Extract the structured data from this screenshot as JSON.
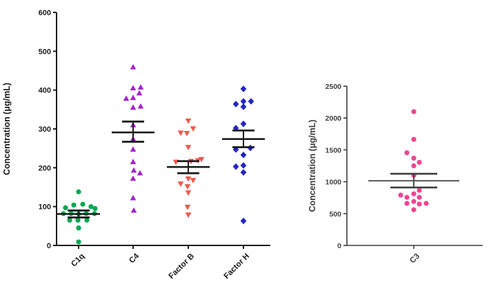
{
  "figure": {
    "background": "#ffffff",
    "panels": [
      "complement-proteins-scatter",
      "c3-scatter"
    ]
  },
  "chart_data": [
    {
      "id": "complement-proteins-scatter",
      "type": "scatter",
      "subtype": "column_scatter_with_mean_and_error",
      "title": "",
      "xlabel": "",
      "ylabel": "Concentration  (μg/mL)",
      "ylim": [
        0,
        600
      ],
      "yticks": [
        0,
        100,
        200,
        300,
        400,
        500,
        600
      ],
      "grid": false,
      "legend": "none",
      "axis_color": "#1a1a1a",
      "categories": [
        "C1q",
        "C4",
        "Factor B",
        "Factor H"
      ],
      "series": [
        {
          "name": "C1q",
          "marker": "circle",
          "color": "#00A84F",
          "mean": 81,
          "err_low": 72,
          "err_high": 90,
          "points": [
            [
              0,
              138
            ],
            [
              -19,
              97
            ],
            [
              -7,
              104
            ],
            [
              6,
              106
            ],
            [
              18,
              100
            ],
            [
              24,
              95
            ],
            [
              -22,
              82
            ],
            [
              -11,
              82
            ],
            [
              0,
              81
            ],
            [
              11,
              82
            ],
            [
              23,
              82
            ],
            [
              -13,
              65
            ],
            [
              -1,
              65
            ],
            [
              12,
              65
            ],
            [
              0,
              45
            ],
            [
              0,
              9
            ]
          ]
        },
        {
          "name": "C4",
          "marker": "triangle-up",
          "color": "#A322CE",
          "mean": 291,
          "err_low": 267,
          "err_high": 319,
          "points": [
            [
              0,
              459
            ],
            [
              0,
              405
            ],
            [
              11,
              407
            ],
            [
              9,
              392
            ],
            [
              -10,
              378
            ],
            [
              0,
              380
            ],
            [
              0,
              355
            ],
            [
              11,
              358
            ],
            [
              0,
              310
            ],
            [
              0,
              274
            ],
            [
              0,
              247
            ],
            [
              0,
              215
            ],
            [
              1,
              193
            ],
            [
              10,
              186
            ],
            [
              0,
              172
            ],
            [
              0,
              122
            ],
            [
              1,
              90
            ]
          ]
        },
        {
          "name": "Factor B",
          "marker": "triangle-down",
          "color": "#F2574B",
          "mean": 202,
          "err_low": 186,
          "err_high": 217,
          "points": [
            [
              0,
              321
            ],
            [
              7,
              301
            ],
            [
              -11,
              290
            ],
            [
              -2,
              289
            ],
            [
              0,
              253
            ],
            [
              -18,
              215
            ],
            [
              4,
              217
            ],
            [
              14,
              219
            ],
            [
              19,
              222
            ],
            [
              0,
              172
            ],
            [
              7,
              168
            ],
            [
              -11,
              159
            ],
            [
              -1,
              152
            ],
            [
              0,
              136
            ],
            [
              -1,
              99
            ],
            [
              0,
              79
            ]
          ]
        },
        {
          "name": "Factor H",
          "marker": "diamond",
          "color": "#2425C4",
          "mean": 274,
          "err_low": 253,
          "err_high": 296,
          "points": [
            [
              0,
              403
            ],
            [
              0,
              371
            ],
            [
              11,
              371
            ],
            [
              -11,
              364
            ],
            [
              0,
              357
            ],
            [
              0,
              313
            ],
            [
              -11,
              302
            ],
            [
              -11,
              247
            ],
            [
              10,
              251
            ],
            [
              0,
              233
            ],
            [
              0,
              206
            ],
            [
              -11,
              203
            ],
            [
              0,
              188
            ],
            [
              0,
              63
            ]
          ]
        }
      ]
    },
    {
      "id": "c3-scatter",
      "type": "scatter",
      "subtype": "column_scatter_with_mean_and_error",
      "title": "",
      "xlabel": "",
      "ylabel": "Concentration  (μg/mL)",
      "ylim": [
        0,
        2500
      ],
      "yticks": [
        0,
        500,
        1000,
        1500,
        2000,
        2500
      ],
      "grid": false,
      "legend": "none",
      "axis_color": "#3d3d3d",
      "categories": [
        "C3"
      ],
      "series": [
        {
          "name": "C3",
          "marker": "circle",
          "color": "#EE4493",
          "mean": 1015,
          "err_low": 910,
          "err_high": 1125,
          "points": [
            [
              0,
              2100
            ],
            [
              0,
              1665
            ],
            [
              -10,
              1455
            ],
            [
              0,
              1370
            ],
            [
              8,
              1305
            ],
            [
              0,
              1250
            ],
            [
              0,
              1100
            ],
            [
              8,
              865
            ],
            [
              0,
              810
            ],
            [
              -19,
              790
            ],
            [
              -10,
              755
            ],
            [
              8,
              755
            ],
            [
              0,
              690
            ],
            [
              -10,
              660
            ],
            [
              18,
              660
            ],
            [
              8,
              650
            ],
            [
              0,
              560
            ]
          ]
        }
      ]
    }
  ]
}
